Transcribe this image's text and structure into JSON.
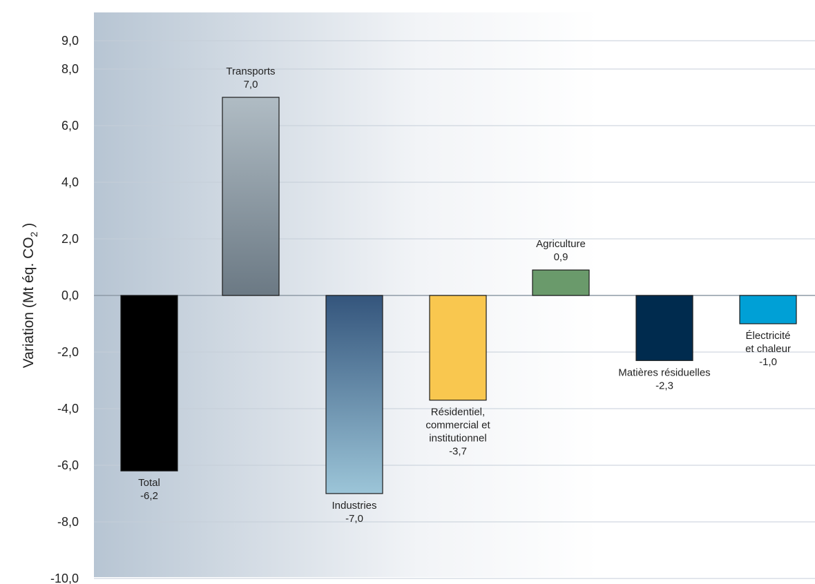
{
  "chart_data": {
    "type": "bar",
    "ylabel": "Variation (Mt éq. CO",
    "ylabel_subscript": "2",
    "ylabel_suffix": " )",
    "ylim": [
      -10,
      9
    ],
    "yticks": [
      9,
      8,
      6,
      4,
      2,
      0,
      -2,
      -4,
      -6,
      -8,
      -10
    ],
    "ytick_labels": [
      "9,0",
      "8,0",
      "6,0",
      "4,0",
      "2,0",
      "0,0",
      "-2,0",
      "-4,0",
      "-6,0",
      "-8,0",
      "-10,0"
    ],
    "grid": true,
    "categories": [
      [
        "Total"
      ],
      [
        "Transports"
      ],
      [
        "Industries"
      ],
      [
        "Résidentiel,",
        "commercial et",
        "institutionnel"
      ],
      [
        "Agriculture"
      ],
      [
        "Matières résiduelles"
      ],
      [
        "Électricité",
        "et chaleur"
      ]
    ],
    "values": [
      -6.2,
      7.0,
      -7.0,
      -3.7,
      0.9,
      -2.3,
      -1.0
    ],
    "value_labels": [
      "-6,2",
      "7,0",
      "-7,0",
      "-3,7",
      "0,9",
      "-2,3",
      "-1,0"
    ],
    "colors": [
      "#000000",
      "gradient-grey",
      "gradient-blue",
      "#f9c74f",
      "#6a9a6b",
      "#002b4e",
      "#00a0d6"
    ]
  }
}
